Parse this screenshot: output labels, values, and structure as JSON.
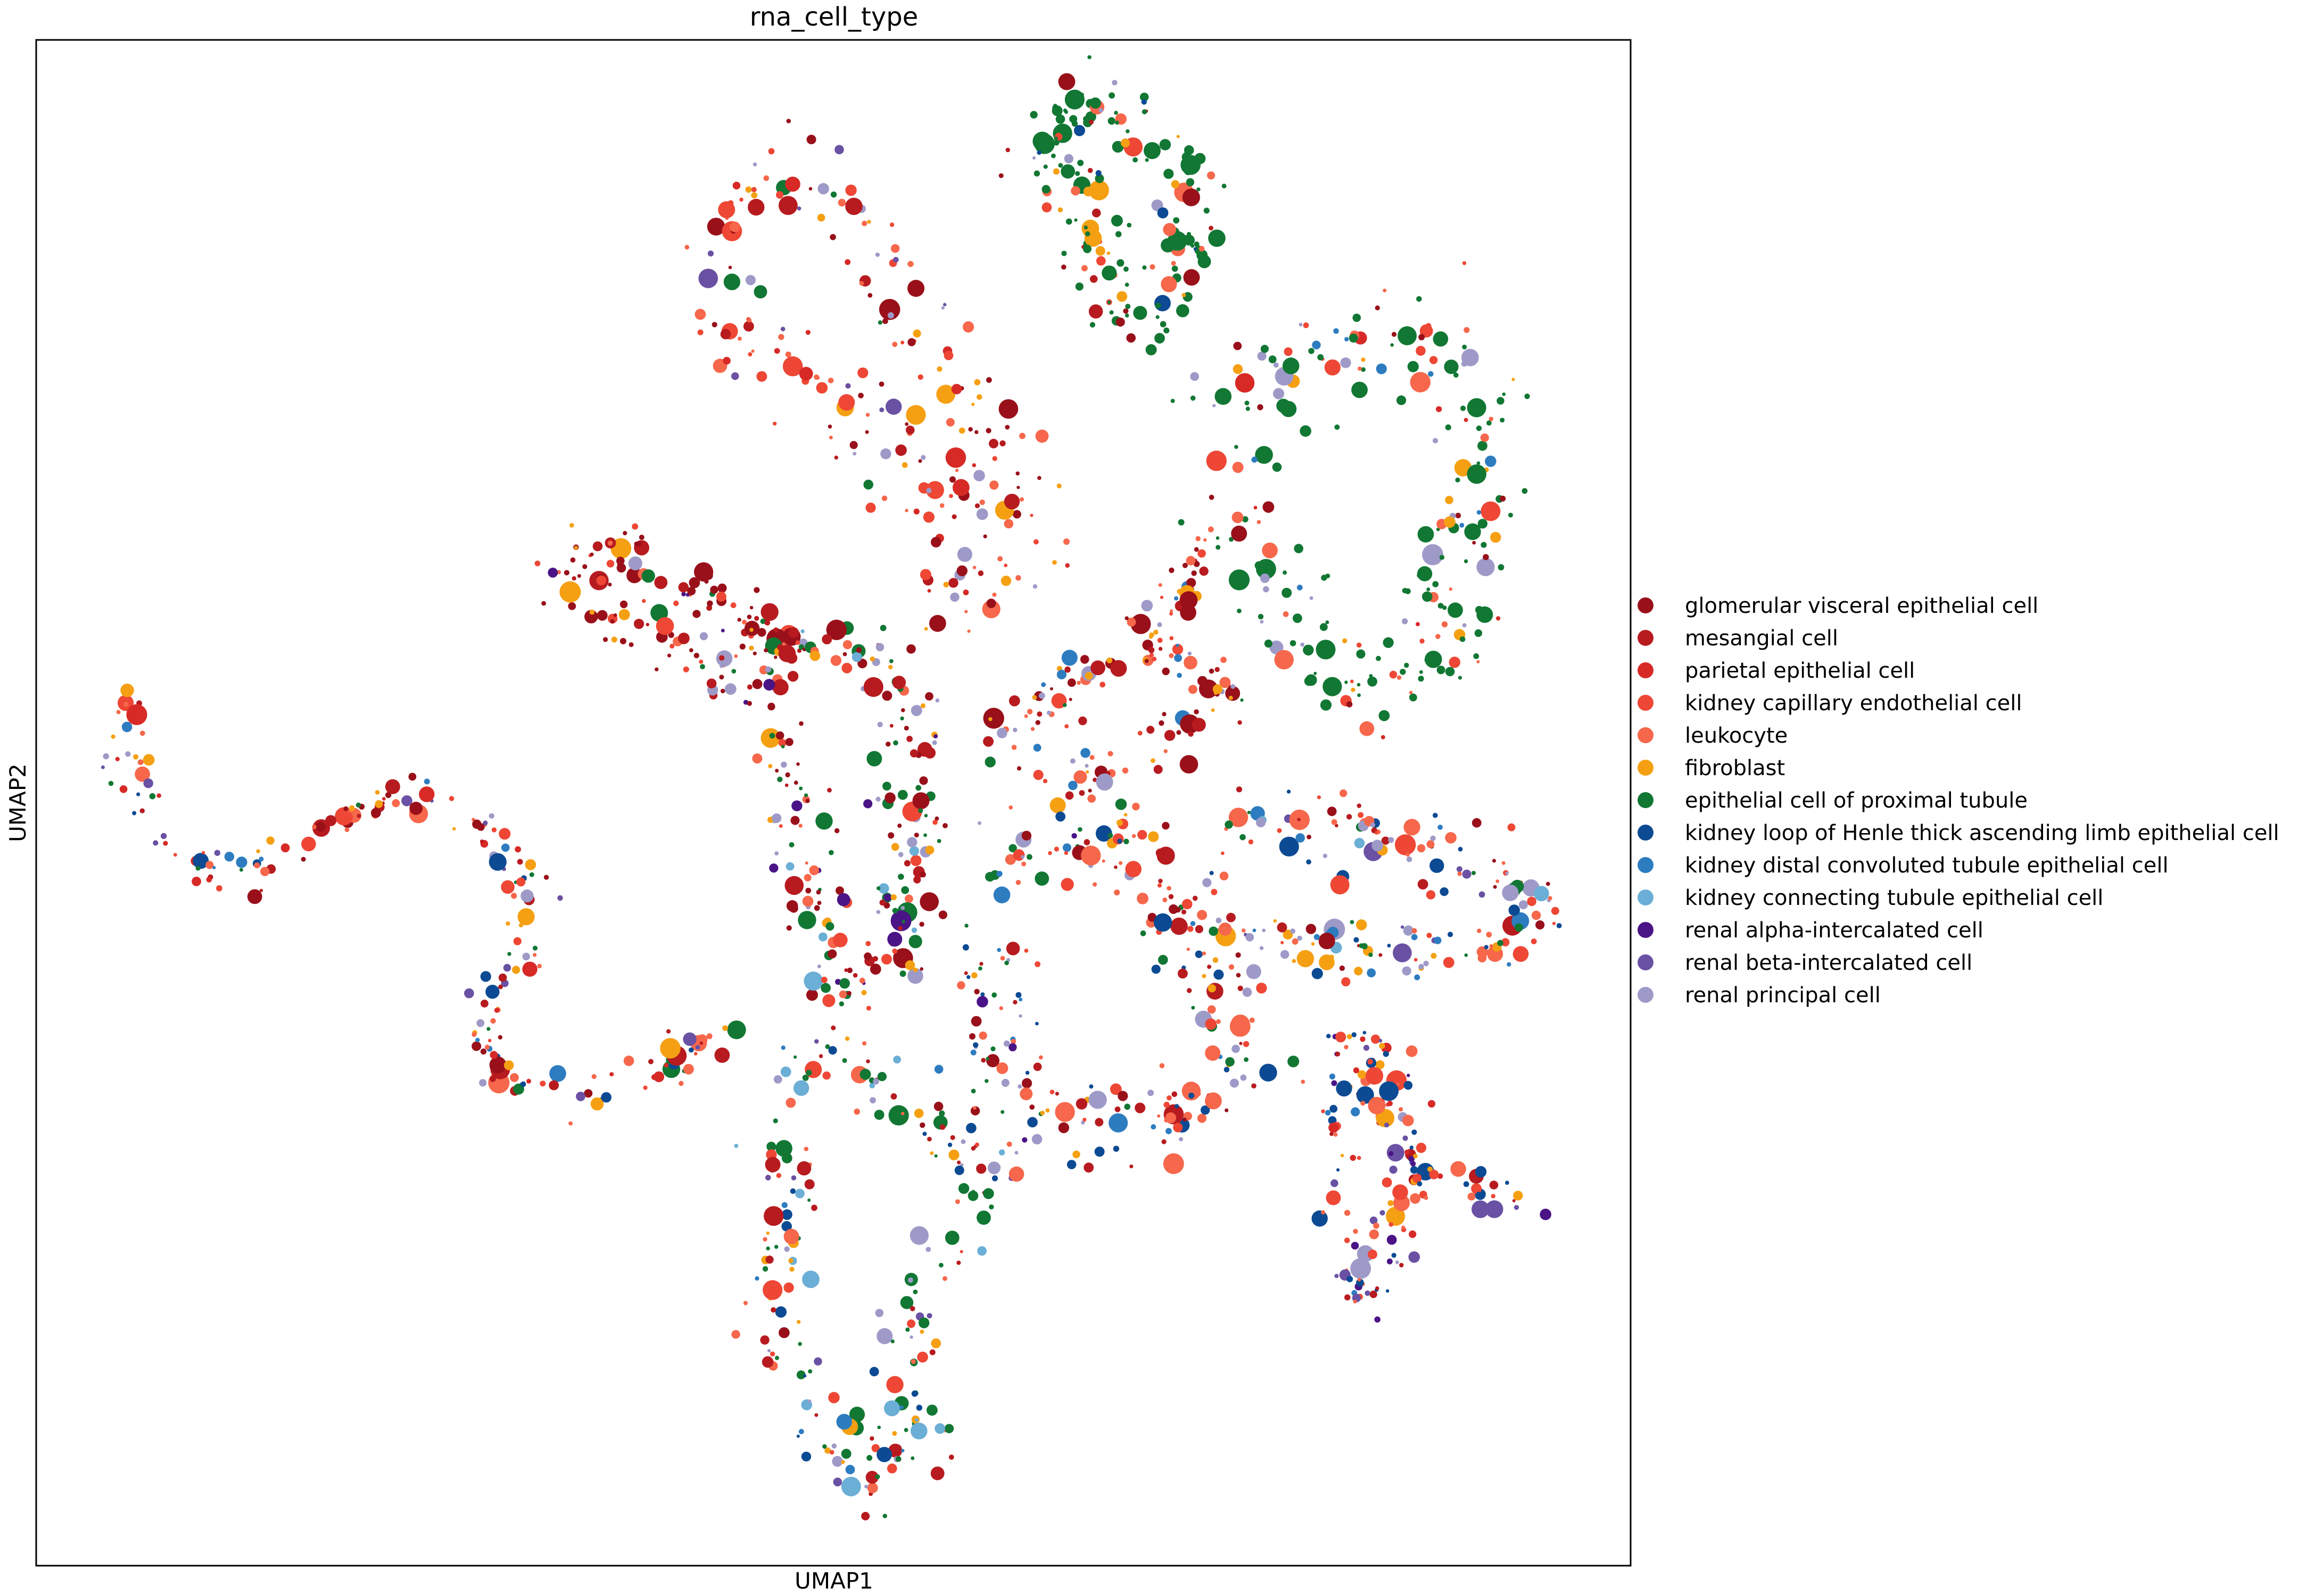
{
  "chart_data": {
    "type": "scatter",
    "title": "rna_cell_type",
    "xlabel": "UMAP1",
    "ylabel": "UMAP2",
    "xlim": [
      0,
      100
    ],
    "ylim": [
      0,
      100
    ],
    "grid": false,
    "ticks": false,
    "legend_position": "right",
    "categories": [
      {
        "name": "glomerular visceral epithelial cell",
        "color": "#99101a"
      },
      {
        "name": "mesangial cell",
        "color": "#b71b1f"
      },
      {
        "name": "parietal epithelial cell",
        "color": "#d72a27"
      },
      {
        "name": "kidney capillary endothelial cell",
        "color": "#ee4735"
      },
      {
        "name": "leukocyte",
        "color": "#f6674b"
      },
      {
        "name": "fibroblast",
        "color": "#f5a012"
      },
      {
        "name": "epithelial cell of proximal tubule",
        "color": "#117733"
      },
      {
        "name": "kidney loop of Henle thick ascending limb epithelial cell",
        "color": "#0c4a93"
      },
      {
        "name": "kidney distal convoluted tubule epithelial cell",
        "color": "#2d7cc0"
      },
      {
        "name": "kidney connecting tubule epithelial cell",
        "color": "#6baed6"
      },
      {
        "name": "renal alpha-intercalated cell",
        "color": "#4a1486"
      },
      {
        "name": "renal beta-intercalated cell",
        "color": "#6a51a3"
      },
      {
        "name": "renal principal cell",
        "color": "#9e9ac8"
      }
    ],
    "clusters": [
      {
        "path": [
          [
            43,
            90.5
          ],
          [
            47,
            91
          ],
          [
            51,
            88
          ],
          [
            55,
            82
          ],
          [
            58,
            78
          ],
          [
            61,
            70
          ],
          [
            62,
            66
          ],
          [
            60,
            63
          ],
          [
            57,
            70
          ],
          [
            54,
            74
          ],
          [
            51,
            74
          ],
          [
            48,
            77
          ],
          [
            45,
            80
          ],
          [
            43,
            84
          ],
          [
            42.5,
            88
          ]
        ],
        "count": 210,
        "mix": {
          "0": 0.16,
          "1": 0.1,
          "2": 0.1,
          "3": 0.2,
          "4": 0.2,
          "5": 0.07,
          "6": 0.03,
          "11": 0.07,
          "12": 0.07
        },
        "width": 3.4
      },
      {
        "path": [
          [
            63,
            95
          ],
          [
            67,
            95.5
          ],
          [
            70,
            94
          ],
          [
            72.5,
            90
          ],
          [
            72.5,
            85.5
          ],
          [
            71,
            82.5
          ],
          [
            69,
            81
          ],
          [
            67,
            85
          ],
          [
            66,
            88
          ],
          [
            64.5,
            91
          ],
          [
            63,
            93
          ]
        ],
        "count": 170,
        "mix": {
          "0": 0.08,
          "1": 0.05,
          "3": 0.07,
          "4": 0.1,
          "5": 0.08,
          "6": 0.52,
          "7": 0.04,
          "12": 0.06
        },
        "width": 2.6
      },
      {
        "path": [
          [
            74,
            74
          ],
          [
            78,
            78
          ],
          [
            83,
            80
          ],
          [
            88,
            80
          ],
          [
            90,
            76
          ],
          [
            90,
            70
          ],
          [
            89,
            64
          ],
          [
            87,
            58
          ],
          [
            84,
            56
          ],
          [
            80,
            60
          ],
          [
            77,
            64
          ],
          [
            74,
            70
          ]
        ],
        "count": 230,
        "mix": {
          "0": 0.04,
          "2": 0.05,
          "3": 0.07,
          "4": 0.07,
          "5": 0.06,
          "6": 0.55,
          "8": 0.04,
          "12": 0.12
        },
        "width": 4.2
      },
      {
        "path": [
          [
            32,
            65
          ],
          [
            35,
            66
          ],
          [
            39,
            65.5
          ],
          [
            44,
            63
          ],
          [
            47,
            60
          ],
          [
            46,
            57.5
          ],
          [
            42,
            59
          ],
          [
            38,
            61.5
          ],
          [
            35,
            63
          ]
        ],
        "count": 150,
        "mix": {
          "0": 0.42,
          "1": 0.15,
          "3": 0.1,
          "4": 0.12,
          "5": 0.08,
          "6": 0.04,
          "10": 0.04,
          "12": 0.05
        },
        "width": 2.2
      },
      {
        "path": [
          [
            47,
            59
          ],
          [
            51,
            60
          ],
          [
            54,
            59
          ],
          [
            55,
            54
          ],
          [
            55,
            49
          ],
          [
            54.5,
            44
          ],
          [
            54,
            41
          ],
          [
            52,
            38
          ],
          [
            50,
            38
          ],
          [
            49,
            41
          ],
          [
            48.5,
            45
          ],
          [
            47,
            50
          ],
          [
            46,
            55
          ]
        ],
        "count": 210,
        "mix": {
          "0": 0.28,
          "1": 0.12,
          "3": 0.09,
          "4": 0.08,
          "5": 0.07,
          "6": 0.2,
          "9": 0.03,
          "10": 0.05,
          "12": 0.08
        },
        "width": 2.5
      },
      {
        "path": [
          [
            60,
            54
          ],
          [
            63,
            56
          ],
          [
            66,
            58
          ],
          [
            69,
            61
          ],
          [
            71,
            64
          ],
          [
            73,
            67
          ],
          [
            70,
            60
          ],
          [
            75,
            57
          ],
          [
            72,
            55
          ],
          [
            68,
            52
          ],
          [
            64,
            52
          ],
          [
            61,
            50
          ]
        ],
        "count": 150,
        "mix": {
          "0": 0.25,
          "1": 0.15,
          "3": 0.12,
          "4": 0.18,
          "5": 0.08,
          "6": 0.06,
          "8": 0.05,
          "12": 0.11
        },
        "width": 2.0
      },
      {
        "path": [
          [
            6.5,
            58
          ],
          [
            5.5,
            53
          ],
          [
            7,
            49
          ],
          [
            10,
            46
          ],
          [
            13,
            45.5
          ],
          [
            16,
            47
          ],
          [
            19,
            49
          ],
          [
            22,
            50
          ],
          [
            25,
            50.5
          ],
          [
            28,
            49
          ],
          [
            30,
            46
          ],
          [
            31,
            42
          ],
          [
            29,
            38
          ],
          [
            28,
            35
          ],
          [
            29,
            32
          ],
          [
            32,
            30.5
          ],
          [
            35,
            31
          ],
          [
            38.5,
            32
          ],
          [
            43,
            34.5
          ]
        ],
        "count": 210,
        "mix": {
          "0": 0.08,
          "1": 0.1,
          "2": 0.09,
          "3": 0.12,
          "4": 0.16,
          "5": 0.11,
          "6": 0.1,
          "7": 0.05,
          "8": 0.05,
          "11": 0.07,
          "12": 0.07
        },
        "width": 1.6
      },
      {
        "path": [
          [
            74,
            48
          ],
          [
            78,
            48.5
          ],
          [
            82,
            48
          ],
          [
            86,
            47
          ],
          [
            90,
            45.5
          ],
          [
            94,
            44
          ],
          [
            93,
            41
          ],
          [
            89,
            40.5
          ],
          [
            84,
            40.5
          ],
          [
            79,
            41
          ],
          [
            75,
            42.5
          ]
        ],
        "count": 180,
        "mix": {
          "0": 0.07,
          "1": 0.1,
          "3": 0.1,
          "4": 0.19,
          "5": 0.1,
          "6": 0.08,
          "7": 0.06,
          "8": 0.07,
          "9": 0.05,
          "11": 0.06,
          "12": 0.12
        },
        "width": 2.8
      },
      {
        "path": [
          [
            60,
            46
          ],
          [
            63,
            47
          ],
          [
            67,
            48
          ],
          [
            70,
            46
          ],
          [
            72,
            42
          ],
          [
            74,
            38
          ],
          [
            76,
            34
          ],
          [
            74,
            31
          ],
          [
            71,
            29
          ],
          [
            68,
            28.5
          ],
          [
            65,
            29
          ],
          [
            62,
            30.5
          ],
          [
            60,
            33
          ],
          [
            60,
            37
          ],
          [
            60.5,
            41
          ]
        ],
        "count": 240,
        "mix": {
          "0": 0.1,
          "1": 0.14,
          "3": 0.12,
          "4": 0.15,
          "5": 0.08,
          "6": 0.12,
          "7": 0.12,
          "8": 0.06,
          "10": 0.03,
          "12": 0.08
        },
        "width": 3.2
      },
      {
        "path": [
          [
            83,
            35
          ],
          [
            84,
            33
          ],
          [
            85.5,
            30
          ],
          [
            86,
            26
          ],
          [
            85,
            22
          ],
          [
            84,
            18.5
          ],
          [
            83,
            17
          ],
          [
            82,
            21
          ],
          [
            81.5,
            27
          ],
          [
            81,
            31
          ],
          [
            82,
            34
          ],
          [
            85,
            28
          ],
          [
            88,
            25
          ],
          [
            92,
            24
          ],
          [
            94,
            23.5
          ]
        ],
        "count": 160,
        "mix": {
          "1": 0.06,
          "2": 0.08,
          "3": 0.14,
          "4": 0.17,
          "5": 0.1,
          "7": 0.16,
          "8": 0.06,
          "10": 0.06,
          "11": 0.1,
          "12": 0.07
        },
        "width": 1.9
      },
      {
        "path": [
          [
            47,
            33
          ],
          [
            51,
            32.5
          ],
          [
            55,
            31
          ],
          [
            58,
            29
          ],
          [
            60,
            25
          ],
          [
            58,
            22
          ],
          [
            56,
            19
          ],
          [
            55,
            15
          ],
          [
            55,
            10
          ],
          [
            54,
            6
          ],
          [
            52,
            5
          ],
          [
            50,
            8
          ],
          [
            48,
            12
          ],
          [
            46.5,
            16
          ],
          [
            47,
            21
          ],
          [
            47,
            26
          ],
          [
            46.5,
            30
          ]
        ],
        "count": 230,
        "mix": {
          "0": 0.04,
          "1": 0.11,
          "3": 0.1,
          "4": 0.09,
          "5": 0.06,
          "6": 0.25,
          "7": 0.08,
          "8": 0.06,
          "9": 0.06,
          "11": 0.05,
          "12": 0.1
        },
        "width": 2.8
      }
    ]
  }
}
